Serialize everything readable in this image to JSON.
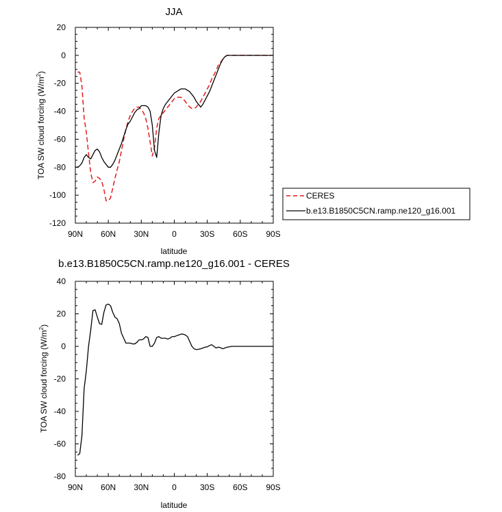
{
  "chart_data": [
    {
      "type": "line",
      "title": "JJA",
      "xlabel": "latitude",
      "ylabel": "TOA SW cloud forcing (W/m",
      "ylabel_sup": "2",
      "ylabel_end": ")",
      "xlim": [
        90,
        -90
      ],
      "ylim": [
        -120,
        20
      ],
      "x_ticks": [
        90,
        60,
        30,
        0,
        -30,
        -60,
        -90
      ],
      "x_tick_labels": [
        "90N",
        "60N",
        "30N",
        "0",
        "30S",
        "60S",
        "90S"
      ],
      "y_ticks": [
        20,
        0,
        -20,
        -40,
        -60,
        -80,
        -100,
        -120
      ],
      "y_tick_labels": [
        "20",
        "0",
        "-20",
        "-40",
        "-60",
        "-80",
        "-100",
        "-120"
      ],
      "grid": false,
      "legend_position": "right",
      "series": [
        {
          "name": "CERES",
          "color": "#e31a1c",
          "dash": "dashed",
          "x": [
            88,
            86,
            84,
            82,
            80,
            78,
            76,
            74,
            72,
            70,
            68,
            66,
            64,
            62,
            60,
            58,
            56,
            54,
            52,
            50,
            48,
            46,
            44,
            42,
            40,
            38,
            36,
            34,
            32,
            30,
            28,
            26,
            24,
            22,
            20,
            18,
            16,
            14,
            12,
            10,
            8,
            6,
            4,
            2,
            0,
            -2,
            -4,
            -6,
            -8,
            -10,
            -12,
            -14,
            -16,
            -18,
            -20,
            -22,
            -24,
            -26,
            -28,
            -30,
            -32,
            -34,
            -36,
            -38,
            -40,
            -42,
            -44,
            -46,
            -48,
            -50,
            -52,
            -54,
            -56,
            -58,
            -60,
            -62,
            -64,
            -66,
            -68,
            -70,
            -72,
            -74,
            -76,
            -78,
            -80,
            -82,
            -84,
            -86,
            -88
          ],
          "values": [
            -12,
            -12,
            -22,
            -45,
            -55,
            -70,
            -84,
            -91,
            -90,
            -87,
            -88,
            -90,
            -96,
            -104,
            -104,
            -102,
            -95,
            -88,
            -82,
            -76,
            -68,
            -60,
            -53,
            -47,
            -43,
            -40,
            -38,
            -37,
            -37,
            -39,
            -41,
            -45,
            -52,
            -62,
            -72,
            -66,
            -52,
            -45,
            -43,
            -41,
            -39,
            -37,
            -35,
            -33,
            -31,
            -30,
            -30,
            -30,
            -31,
            -33,
            -35,
            -37,
            -38,
            -38,
            -37,
            -35,
            -33,
            -30,
            -27,
            -24,
            -21,
            -17,
            -14,
            -11,
            -7,
            -5,
            -3,
            -1,
            0,
            0,
            0,
            0,
            0,
            0,
            0,
            0,
            0,
            0,
            0,
            0,
            0,
            0,
            0,
            0,
            0,
            0,
            0,
            0,
            0
          ]
        },
        {
          "name": "b.e13.B1850C5CN.ramp.ne120_g16.001",
          "color": "#000000",
          "dash": "solid",
          "x": [
            90,
            88,
            86,
            84,
            82,
            80,
            78,
            76,
            74,
            72,
            70,
            68,
            66,
            64,
            62,
            60,
            58,
            56,
            54,
            52,
            50,
            48,
            46,
            44,
            42,
            40,
            38,
            36,
            34,
            32,
            30,
            28,
            26,
            24,
            22,
            20,
            18,
            16,
            14,
            12,
            10,
            8,
            6,
            4,
            2,
            0,
            -2,
            -4,
            -6,
            -8,
            -10,
            -12,
            -14,
            -16,
            -18,
            -20,
            -22,
            -24,
            -26,
            -28,
            -30,
            -32,
            -34,
            -36,
            -38,
            -40,
            -42,
            -44,
            -46,
            -48,
            -50,
            -52,
            -54,
            -56,
            -58,
            -60,
            -62,
            -64,
            -66,
            -68,
            -70,
            -72,
            -74,
            -76,
            -78,
            -80,
            -82,
            -84,
            -86,
            -88,
            -90
          ],
          "values": [
            -80,
            -80,
            -79,
            -77,
            -73,
            -71,
            -73,
            -74,
            -71,
            -68,
            -67,
            -69,
            -73,
            -76,
            -78,
            -80,
            -80,
            -78,
            -75,
            -71,
            -67,
            -63,
            -58,
            -53,
            -49,
            -47,
            -44,
            -41,
            -39,
            -38,
            -36,
            -36,
            -36,
            -37,
            -40,
            -50,
            -68,
            -73,
            -55,
            -43,
            -38,
            -35,
            -33,
            -31,
            -29,
            -27,
            -26,
            -25,
            -24,
            -24,
            -24,
            -25,
            -26,
            -28,
            -30,
            -33,
            -35,
            -37,
            -35,
            -32,
            -29,
            -26,
            -22,
            -18,
            -14,
            -10,
            -6,
            -3,
            -1,
            0,
            0,
            0,
            0,
            0,
            0,
            0,
            0,
            0,
            0,
            0,
            0,
            0,
            0,
            0,
            0,
            0,
            0,
            0,
            0,
            0,
            0
          ]
        }
      ]
    },
    {
      "type": "line",
      "title": "b.e13.B1850C5CN.ramp.ne120_g16.001 - CERES",
      "xlabel": "latitude",
      "ylabel": "TOA SW cloud forcing (W/m",
      "ylabel_sup": "2",
      "ylabel_end": ")",
      "xlim": [
        90,
        -90
      ],
      "ylim": [
        -80,
        40
      ],
      "x_ticks": [
        90,
        60,
        30,
        0,
        -30,
        -60,
        -90
      ],
      "x_tick_labels": [
        "90N",
        "60N",
        "30N",
        "0",
        "30S",
        "60S",
        "90S"
      ],
      "y_ticks": [
        40,
        20,
        0,
        -20,
        -40,
        -60,
        -80
      ],
      "y_tick_labels": [
        "40",
        "20",
        "0",
        "-20",
        "-40",
        "-60",
        "-80"
      ],
      "grid": false,
      "series": [
        {
          "color": "#000000",
          "dash": "solid",
          "x": [
            88,
            86,
            84,
            82,
            80,
            78,
            76,
            74,
            72,
            70,
            68,
            66,
            64,
            62,
            60,
            58,
            56,
            54,
            52,
            50,
            48,
            46,
            44,
            42,
            40,
            38,
            36,
            34,
            32,
            30,
            28,
            26,
            24,
            22,
            20,
            18,
            16,
            14,
            12,
            10,
            8,
            6,
            4,
            2,
            0,
            -2,
            -4,
            -6,
            -8,
            -10,
            -12,
            -14,
            -16,
            -18,
            -20,
            -22,
            -24,
            -26,
            -28,
            -30,
            -32,
            -34,
            -36,
            -38,
            -40,
            -42,
            -44,
            -46,
            -48,
            -50,
            -52,
            -54,
            -56,
            -58,
            -60,
            -62,
            -64,
            -66,
            -68,
            -70,
            -72,
            -74,
            -76,
            -78,
            -80,
            -82,
            -84,
            -86,
            -88,
            -90
          ],
          "values": [
            -67,
            -66,
            -55,
            -26,
            -15,
            0,
            10,
            22,
            22.5,
            18,
            14,
            13.5,
            21,
            25.5,
            26,
            25,
            21,
            18,
            17,
            14,
            8,
            5,
            2,
            2,
            2,
            1.5,
            1.5,
            2.5,
            4,
            4,
            4.5,
            6,
            5.5,
            0,
            0,
            2,
            5.5,
            6,
            5,
            5,
            5,
            4.5,
            5,
            6,
            6,
            6.5,
            7,
            7.5,
            7.5,
            7,
            6,
            3,
            0,
            -1.5,
            -2,
            -1.8,
            -1.5,
            -1,
            -0.5,
            -0.3,
            0.5,
            1,
            0,
            -1,
            -0.5,
            -0.8,
            -1.5,
            -1,
            -0.5,
            -0.3,
            0,
            0,
            0,
            0,
            0,
            0,
            0,
            0,
            0,
            0,
            0,
            0,
            0,
            0,
            0,
            0,
            0,
            0,
            0,
            0
          ]
        }
      ]
    }
  ]
}
